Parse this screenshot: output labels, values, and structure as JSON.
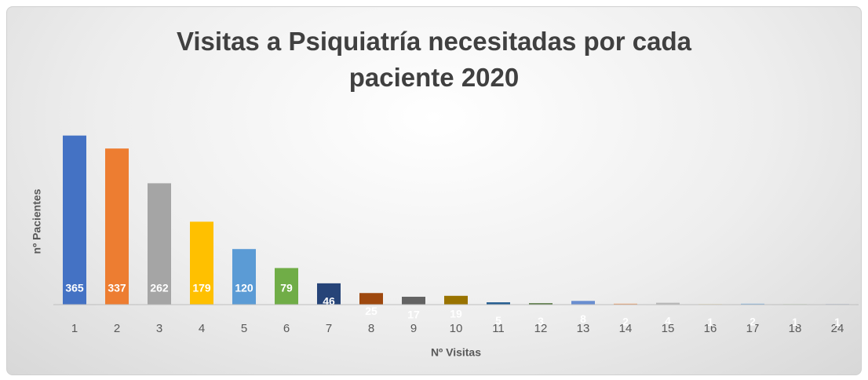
{
  "chart_data": {
    "type": "bar",
    "title": "Visitas a Psiquiatría necesitadas por cada paciente 2020",
    "x_label": "Nº Visitas",
    "y_label": "nº Pacientes",
    "categories": [
      "1",
      "2",
      "3",
      "4",
      "5",
      "6",
      "7",
      "8",
      "9",
      "10",
      "11",
      "12",
      "13",
      "14",
      "15",
      "16",
      "17",
      "18",
      "24"
    ],
    "values": [
      365,
      337,
      262,
      179,
      120,
      79,
      46,
      25,
      17,
      19,
      5,
      3,
      8,
      2,
      4,
      1,
      2,
      1,
      1
    ],
    "colors": [
      "#4472c4",
      "#ed7d31",
      "#a5a5a5",
      "#ffc000",
      "#5b9bd5",
      "#70ad47",
      "#264478",
      "#9e480e",
      "#636363",
      "#997300",
      "#255e91",
      "#43682b",
      "#698ed0",
      "#f1975a",
      "#b7b7b7",
      "#ffcd33",
      "#7cafdd",
      "#8cc168",
      "#335aa1"
    ],
    "ylim": [
      0,
      400
    ]
  }
}
